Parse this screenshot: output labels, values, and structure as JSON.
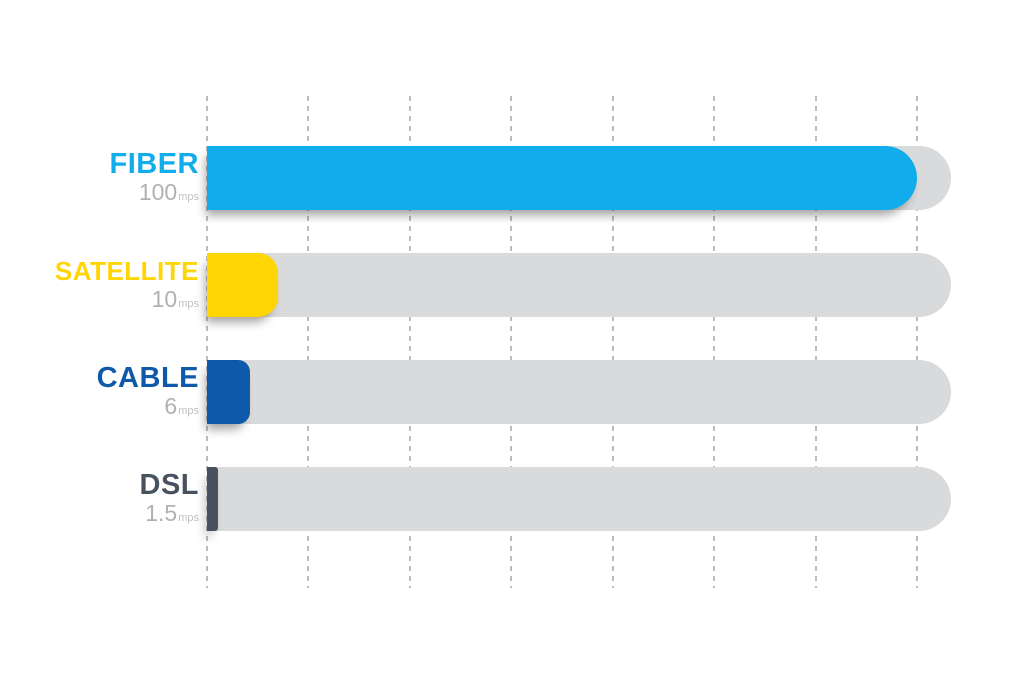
{
  "chart_data": {
    "type": "bar",
    "orientation": "horizontal",
    "title": "",
    "xlabel": "",
    "ylabel": "",
    "unit": "mps",
    "categories": [
      "FIBER",
      "SATELLITE",
      "CABLE",
      "DSL"
    ],
    "values": [
      100,
      10,
      6,
      1.5
    ],
    "xlim": [
      0,
      100
    ],
    "grid": "dashed-vertical",
    "legend": "none",
    "bars": [
      {
        "label": "FIBER",
        "value": 100,
        "display_value": "100",
        "unit": "mps",
        "color": "#10ACEC"
      },
      {
        "label": "SATELLITE",
        "value": 10,
        "display_value": "10",
        "unit": "mps",
        "color": "#FFD504"
      },
      {
        "label": "CABLE",
        "value": 6,
        "display_value": "6",
        "unit": "mps",
        "color": "#0E59A9"
      },
      {
        "label": "DSL",
        "value": 1.5,
        "display_value": "1.5",
        "unit": "mps",
        "color": "#47525E"
      }
    ],
    "colors": {
      "track": "#D9DADB",
      "gridline": "#BDBDBD",
      "value_text": "#AFB2B4",
      "unit_text": "#BFC2C4",
      "background": "#FFFFFF"
    }
  }
}
